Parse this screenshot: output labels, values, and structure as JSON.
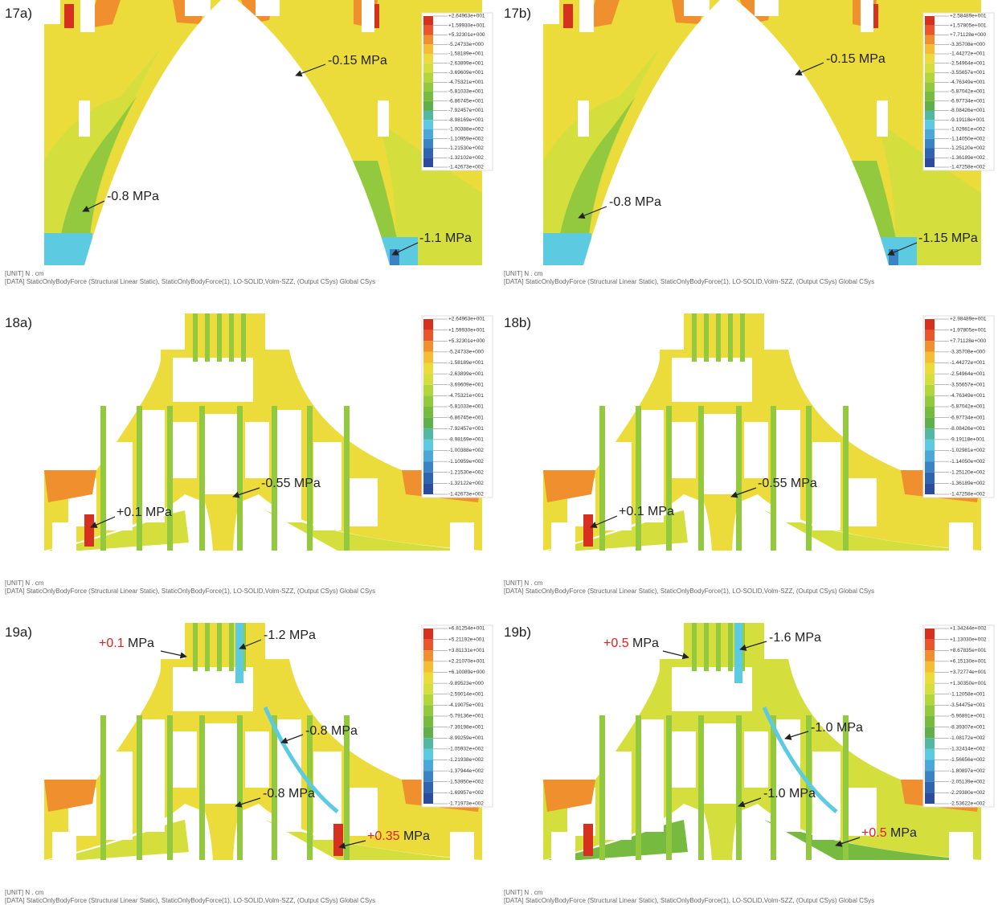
{
  "colormap": [
    "#d7301f",
    "#e8562a",
    "#f08f2e",
    "#f5bd33",
    "#ebdc3b",
    "#d4df3d",
    "#b3d63d",
    "#93c93e",
    "#76bb40",
    "#5faf4a",
    "#52b8a0",
    "#5ccbe2",
    "#4aa8d8",
    "#3a84c4",
    "#2f64b0",
    "#2a4ba0"
  ],
  "panels": [
    {
      "label": "17a)",
      "shape": "arch",
      "legend": [
        "+2.64963e+001",
        "+1.59930e+001",
        "+5.32301e+000",
        "-5.24733e+000",
        "-1.58189e+001",
        "-2.63899e+001",
        "-3.69609e+001",
        "-4.75321e+001",
        "-5.81033e+001",
        "-6.86745e+001",
        "-7.92457e+001",
        "-8.98169e+001",
        "-1.00388e+002",
        "-1.10959e+002",
        "-1.21530e+002",
        "-1.32102e+002",
        "-1.42673e+002"
      ],
      "annotations": [
        {
          "value": "-0.15",
          "unit": "MPa",
          "color": "#222222"
        },
        {
          "value": "-0.8",
          "unit": "MPa",
          "color": "#222222"
        },
        {
          "value": "-1.1",
          "unit": "MPa",
          "color": "#222222"
        }
      ],
      "unit_line": "[UNIT] N . cm",
      "data_line": "[DATA] StaticOnlyBodyForce (Structural Linear Static), StaticOnlyBodyForce(1), LO-SOLID,Volm-SZZ, (Output CSys) Global CSys"
    },
    {
      "label": "17b)",
      "shape": "arch",
      "legend": [
        "+2.58489e+001",
        "+1.57805e+001",
        "+7.71128e+000",
        "-3.35708e+000",
        "-1.44272e+001",
        "-2.54964e+001",
        "-3.55657e+001",
        "-4.76349e+001",
        "-5.87042e+001",
        "-6.97734e+001",
        "-8.08426e+001",
        "-9.19118e+001",
        "-1.02981e+002",
        "-1.14050e+002",
        "-1.25120e+002",
        "-1.36189e+002",
        "-1.47258e+002"
      ],
      "annotations": [
        {
          "value": "-0.15",
          "unit": "MPa",
          "color": "#222222"
        },
        {
          "value": "-0.8",
          "unit": "MPa",
          "color": "#222222"
        },
        {
          "value": "-1.15",
          "unit": "MPa",
          "color": "#222222"
        }
      ],
      "unit_line": "[UNIT] N . cm",
      "data_line": "[DATA] StaticOnlyBodyForce (Structural Linear Static), StaticOnlyBodyForce(1), LO-SOLID,Volm-SZZ, (Output CSys) Global CSys"
    },
    {
      "label": "18a)",
      "shape": "tower",
      "legend": [
        "+2.64963e+001",
        "+1.59930e+001",
        "+5.32301e+000",
        "-5.24733e+000",
        "-1.58189e+001",
        "-2.63899e+001",
        "-3.69609e+001",
        "-4.75321e+001",
        "-5.81033e+001",
        "-6.86745e+001",
        "-7.92457e+001",
        "-8.98169e+001",
        "-1.00388e+002",
        "-1.10959e+002",
        "-1.21530e+002",
        "-1.32122e+002",
        "-1.42673e+002"
      ],
      "annotations": [
        {
          "value": "-0.55",
          "unit": "MPa",
          "color": "#222222"
        },
        {
          "value": "+0.1",
          "unit": "MPa",
          "color": "#222222"
        }
      ],
      "unit_line": "[UNIT] N . cm",
      "data_line": "[DATA] StaticOnlyBodyForce (Structural Linear Static), StaticOnlyBodyForce(1), LO-SOLID,Volm-SZZ, (Output CSys) Global CSys"
    },
    {
      "label": "18b)",
      "shape": "tower",
      "legend": [
        "+2.98489e+001",
        "+1.97805e+001",
        "+7.71128e+000",
        "-3.35708e+000",
        "-1.44272e+001",
        "-2.54964e+001",
        "-3.55657e+001",
        "-4.76349e+001",
        "-5.87042e+001",
        "-6.97734e+001",
        "-8.08426e+001",
        "-9.19118e+001",
        "-1.02981e+002",
        "-1.14050e+002",
        "-1.25120e+002",
        "-1.36189e+002",
        "-1.47258e+002"
      ],
      "annotations": [
        {
          "value": "-0.55",
          "unit": "MPa",
          "color": "#222222"
        },
        {
          "value": "+0.1",
          "unit": "MPa",
          "color": "#222222"
        }
      ],
      "unit_line": "[UNIT] N . cm",
      "data_line": "[DATA] StaticOnlyBodyForce (Structural Linear Static), StaticOnlyBodyForce(1), LO-SOLID,Volm-SZZ, (Output CSys) Global CSys"
    },
    {
      "label": "19a)",
      "shape": "tower",
      "legend": [
        "+6.81254e+001",
        "+5.21192e+001",
        "+3.81131e+001",
        "+2.21070e+001",
        "+6.10089e+000",
        "-9.89523e+000",
        "-2.59014e+001",
        "-4.19075e+001",
        "-5.79136e+001",
        "-7.39198e+001",
        "-8.99259e+001",
        "-1.05932e+002",
        "-1.21938e+002",
        "-1.37944e+002",
        "-1.53950e+002",
        "-1.69957e+002",
        "-1.71973e+002"
      ],
      "annotations": [
        {
          "value": "+0.1",
          "unit": "MPa",
          "color": "#e0201b"
        },
        {
          "value": "-1.2",
          "unit": "MPa",
          "color": "#222222"
        },
        {
          "value": "-0.8",
          "unit": "MPa",
          "color": "#222222"
        },
        {
          "value": "-0.8",
          "unit": "MPa",
          "color": "#222222"
        },
        {
          "value": "+0.35",
          "unit": "MPa",
          "color": "#e0201b"
        }
      ],
      "unit_line": "[UNIT] N . cm",
      "data_line": "[DATA] StaticOnlyBodyForce (Structural Linear Static), StaticOnlyBodyForce(1), LO-SOLID,Volm-SZZ, (Output CSys) Global CSys"
    },
    {
      "label": "19b)",
      "shape": "tower",
      "legend": [
        "+1.34244e+002",
        "+1.13030e+002",
        "+8.67835e+001",
        "+6.15130e+001",
        "+3.72774e+001",
        "+1.30350e+001",
        "-1.12058e+001",
        "-3.54475e+001",
        "-5.96891e+001",
        "-8.39307e+001",
        "-1.08172e+002",
        "-1.32414e+002",
        "-1.56656e+002",
        "-1.80897e+002",
        "-2.05139e+002",
        "-2.29380e+002",
        "-2.53622e+002"
      ],
      "annotations": [
        {
          "value": "+0.5",
          "unit": "MPa",
          "color": "#e0201b"
        },
        {
          "value": "-1.6",
          "unit": "MPa",
          "color": "#222222"
        },
        {
          "value": "-1.0",
          "unit": "MPa",
          "color": "#222222"
        },
        {
          "value": "-1.0",
          "unit": "MPa",
          "color": "#222222"
        },
        {
          "value": "+0.5",
          "unit": "MPa",
          "color": "#e0201b"
        }
      ],
      "unit_line": "[UNIT] N . cm",
      "data_line": "[DATA] StaticOnlyBodyForce (Structural Linear Static), StaticOnlyBodyForce(1), LO-SOLID,Volm-SZZ, (Output CSys) Global CSys"
    }
  ]
}
